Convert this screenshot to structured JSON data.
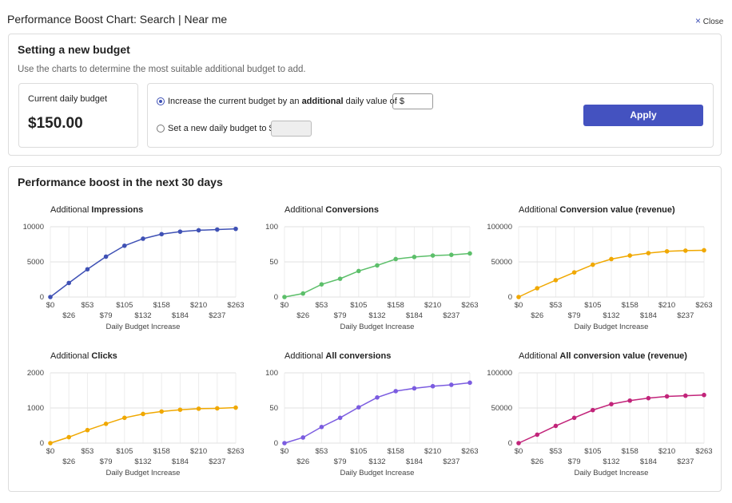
{
  "header": {
    "title": "Performance Boost Chart: Search | Near me",
    "close": "Close"
  },
  "budget_panel": {
    "title": "Setting a new budget",
    "hint": "Use the charts to determine the most suitable additional budget to add.",
    "current_label": "Current daily budget",
    "current_value": "$150.00",
    "option_increase": {
      "lead": "Increase the current budget by an",
      "emphasis": "additional",
      "tail": "daily value of $"
    },
    "option_set": "Set a new daily budget to $",
    "apply": "Apply"
  },
  "performance": {
    "title": "Performance boost in the next 30 days"
  },
  "chart_data": [
    {
      "type": "line",
      "title_lead": "Additional",
      "title_emphasis": "Impressions",
      "categories": [
        "$0",
        "$26",
        "$53",
        "$79",
        "$105",
        "$132",
        "$158",
        "$184",
        "$210",
        "$237",
        "$263"
      ],
      "xlabel": "Daily Budget Increase",
      "values": [
        0,
        2000,
        3950,
        5750,
        7300,
        8300,
        8950,
        9300,
        9500,
        9600,
        9700
      ],
      "color": "#3f51b5",
      "ylim": [
        0,
        10000
      ],
      "yticks": [
        0,
        5000,
        10000
      ],
      "grid": true
    },
    {
      "type": "line",
      "title_lead": "Additional",
      "title_emphasis": "Conversions",
      "categories": [
        "$0",
        "$26",
        "$53",
        "$79",
        "$105",
        "$132",
        "$158",
        "$184",
        "$210",
        "$237",
        "$263"
      ],
      "xlabel": "Daily Budget Increase",
      "values": [
        0,
        5,
        18,
        26,
        37,
        45,
        54,
        57,
        59,
        60,
        62
      ],
      "color": "#5cbf6a",
      "ylim": [
        0,
        100
      ],
      "yticks": [
        0,
        50,
        100
      ],
      "grid": true
    },
    {
      "type": "line",
      "title_lead": "Additional",
      "title_emphasis": "Conversion value (revenue)",
      "categories": [
        "$0",
        "$26",
        "$53",
        "$79",
        "$105",
        "$132",
        "$158",
        "$184",
        "$210",
        "$237",
        "$263"
      ],
      "xlabel": "Daily Budget Increase",
      "values": [
        0,
        12500,
        24000,
        35000,
        46000,
        54000,
        59000,
        62500,
        65000,
        66000,
        66500
      ],
      "color": "#f0a800",
      "ylim": [
        0,
        100000
      ],
      "yticks": [
        0,
        50000,
        100000
      ],
      "grid": true
    },
    {
      "type": "line",
      "title_lead": "Additional",
      "title_emphasis": "Clicks",
      "categories": [
        "$0",
        "$26",
        "$53",
        "$79",
        "$105",
        "$132",
        "$158",
        "$184",
        "$210",
        "$237",
        "$263"
      ],
      "xlabel": "Daily Budget Increase",
      "values": [
        0,
        170,
        370,
        550,
        720,
        830,
        900,
        950,
        980,
        990,
        1010
      ],
      "color": "#f0a800",
      "ylim": [
        0,
        2000
      ],
      "yticks": [
        0,
        1000,
        2000
      ],
      "grid": true
    },
    {
      "type": "line",
      "title_lead": "Additional",
      "title_emphasis": "All conversions",
      "categories": [
        "$0",
        "$26",
        "$53",
        "$79",
        "$105",
        "$132",
        "$158",
        "$184",
        "$210",
        "$237",
        "$263"
      ],
      "xlabel": "Daily Budget Increase",
      "values": [
        0,
        8,
        23,
        36,
        51,
        65,
        74,
        78,
        81,
        83,
        86
      ],
      "color": "#7b5ce0",
      "ylim": [
        0,
        100
      ],
      "yticks": [
        0,
        50,
        100
      ],
      "grid": true
    },
    {
      "type": "line",
      "title_lead": "Additional",
      "title_emphasis": "All conversion value (revenue)",
      "categories": [
        "$0",
        "$26",
        "$53",
        "$79",
        "$105",
        "$132",
        "$158",
        "$184",
        "$210",
        "$237",
        "$263"
      ],
      "xlabel": "Daily Budget Increase",
      "values": [
        0,
        12000,
        24500,
        36000,
        47000,
        55500,
        60500,
        64000,
        66500,
        67500,
        68500
      ],
      "color": "#c2247a",
      "ylim": [
        0,
        100000
      ],
      "yticks": [
        0,
        50000,
        100000
      ],
      "grid": true
    }
  ]
}
